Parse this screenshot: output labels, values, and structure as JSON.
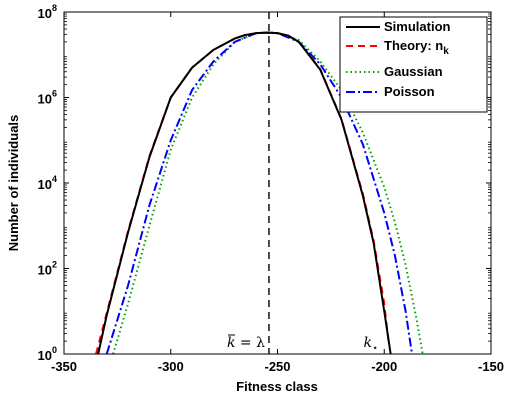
{
  "chart_data": {
    "type": "line",
    "title": "",
    "xlabel": "Fitness class",
    "ylabel": "Number of individuals",
    "xlim": [
      -350,
      -150
    ],
    "ylim": [
      1,
      100000000
    ],
    "y_scale": "log",
    "grid": false,
    "legend_position": "top-right",
    "x_ticks": [
      "-350",
      "-300",
      "-250",
      "-200",
      "-150"
    ],
    "x_tick_values": [
      -350,
      -300,
      -250,
      -200,
      -150
    ],
    "y_ticks": [
      {
        "base": "10",
        "exp": "0",
        "value": 1
      },
      {
        "base": "10",
        "exp": "2",
        "value": 100
      },
      {
        "base": "10",
        "exp": "4",
        "value": 10000
      },
      {
        "base": "10",
        "exp": "6",
        "value": 1000000
      },
      {
        "base": "10",
        "exp": "8",
        "value": 100000000
      }
    ],
    "vline": {
      "x": -254,
      "style": "dashed",
      "color": "#000000"
    },
    "annotations": [
      {
        "id": "kbar",
        "main": "k",
        "bar": true,
        "eq": " = λ",
        "x": -254
      },
      {
        "id": "kstar",
        "main": "k",
        "sub": "⋆",
        "x": -200
      }
    ],
    "series": [
      {
        "name": "Simulation",
        "color": "#000000",
        "dash": "",
        "x": [
          -334,
          -330,
          -320,
          -310,
          -300,
          -290,
          -280,
          -270,
          -265,
          -260,
          -255,
          -250,
          -245,
          -240,
          -230,
          -220,
          -210,
          -205,
          -200,
          -197
        ],
        "y": [
          1,
          8,
          700,
          40000,
          1000000,
          5000000,
          13000000,
          24000000,
          29000000,
          32000000,
          33000000,
          32000000,
          28000000,
          20000000,
          4500000,
          300000,
          5000,
          400,
          10,
          1
        ]
      },
      {
        "name": "Theory: n_k",
        "legend_main": "Theory: n",
        "legend_sub": "k",
        "color": "#ff0000",
        "dash": "7,5",
        "x": [
          -335,
          -330,
          -320,
          -310,
          -300,
          -290,
          -280,
          -270,
          -265,
          -260,
          -255,
          -250,
          -245,
          -240,
          -230,
          -220,
          -210,
          -205,
          -200,
          -198
        ],
        "y": [
          1,
          9,
          750,
          42000,
          1000000,
          5000000,
          13000000,
          24000000,
          29000000,
          32000000,
          33000000,
          32000000,
          28000000,
          20000000,
          4600000,
          310000,
          5500,
          450,
          15,
          2
        ]
      },
      {
        "name": "Gaussian",
        "color": "#00a000",
        "dash": "1.5,3",
        "x": [
          -327,
          -320,
          -310,
          -300,
          -290,
          -280,
          -270,
          -260,
          -254,
          -250,
          -240,
          -230,
          -220,
          -210,
          -200,
          -195,
          -190,
          -185,
          -182
        ],
        "y": [
          1,
          15,
          1000,
          60000,
          1000000,
          6000000,
          20000000,
          32000000,
          33000000,
          32000000,
          22000000,
          7000000,
          1500000,
          150000,
          8000,
          1200,
          120,
          7,
          1
        ]
      },
      {
        "name": "Poisson",
        "color": "#0000ff",
        "dash": "9,3,2,3",
        "x": [
          -330,
          -320,
          -310,
          -300,
          -290,
          -280,
          -270,
          -260,
          -254,
          -250,
          -240,
          -230,
          -220,
          -210,
          -200,
          -195,
          -190,
          -187
        ],
        "y": [
          1,
          40,
          3000,
          100000,
          1500000,
          7000000,
          20000000,
          32000000,
          33000000,
          32000000,
          20000000,
          6000000,
          1000000,
          80000,
          2000,
          200,
          10,
          1
        ]
      }
    ]
  }
}
